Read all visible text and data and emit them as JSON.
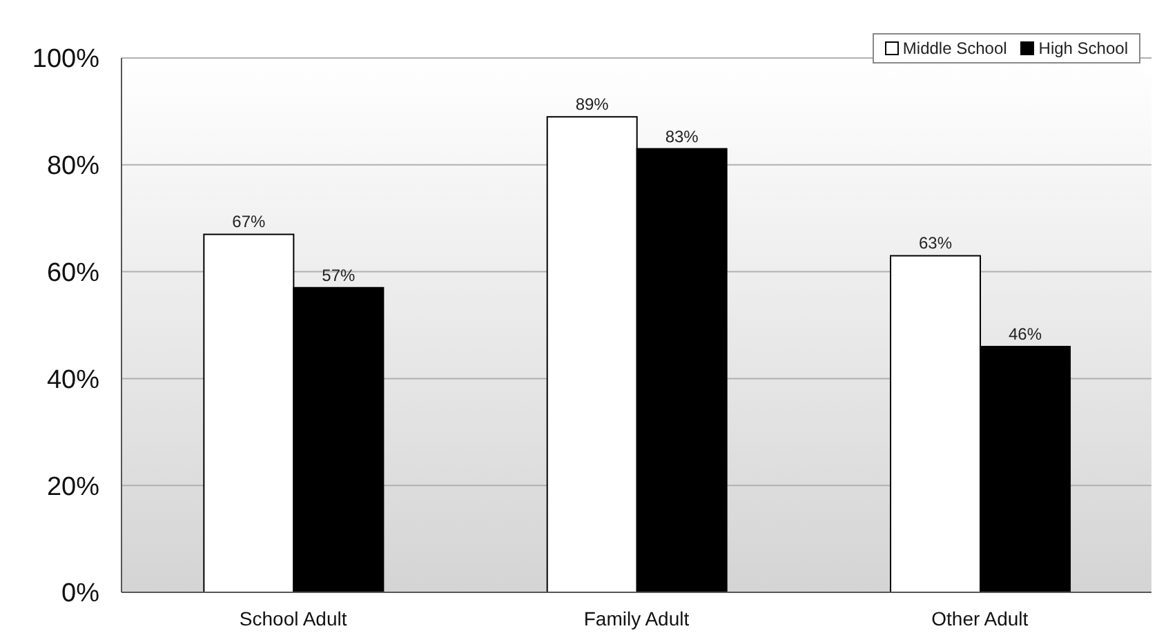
{
  "chart_data": {
    "type": "bar",
    "categories": [
      "School Adult",
      "Family Adult",
      "Other Adult"
    ],
    "series": [
      {
        "name": "Middle School",
        "color": "#ffffff",
        "values": [
          67,
          89,
          63
        ],
        "value_labels": [
          "67%",
          "89%",
          "63%"
        ]
      },
      {
        "name": "High School",
        "color": "#000000",
        "values": [
          57,
          83,
          46
        ],
        "value_labels": [
          "57%",
          "83%",
          "46%"
        ]
      }
    ],
    "ylim": [
      0,
      100
    ],
    "yticks": [
      {
        "value": 0,
        "label": "0%"
      },
      {
        "value": 20,
        "label": "20%"
      },
      {
        "value": 40,
        "label": "40%"
      },
      {
        "value": 60,
        "label": "60%"
      },
      {
        "value": 80,
        "label": "80%"
      },
      {
        "value": 100,
        "label": "100%"
      }
    ],
    "grid": "y",
    "legend": "top right"
  }
}
